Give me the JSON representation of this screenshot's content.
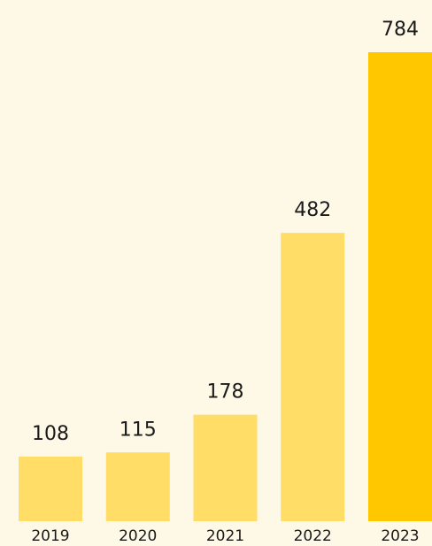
{
  "chart_data": {
    "type": "bar",
    "categories": [
      "2019",
      "2020",
      "2021",
      "2022",
      "2023"
    ],
    "values": [
      108,
      115,
      178,
      482,
      784
    ],
    "colors": [
      "#ffdd66",
      "#ffdd66",
      "#ffdd66",
      "#ffdd66",
      "#ffc700"
    ]
  }
}
